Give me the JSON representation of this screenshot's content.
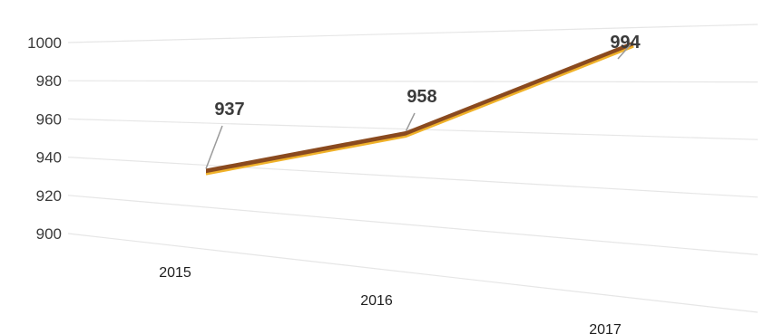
{
  "chart_data": {
    "type": "line",
    "title": "",
    "xlabel": "",
    "ylabel": "",
    "categories": [
      "2015",
      "2016",
      "2017"
    ],
    "series": [
      {
        "values": [
          937,
          958,
          994
        ]
      }
    ],
    "data_labels": [
      "937",
      "958",
      "994"
    ],
    "y_ticks": [
      "1000",
      "980",
      "960",
      "940",
      "920",
      "900"
    ],
    "ylim": [
      900,
      1000
    ],
    "grid": true,
    "perspective_3d": true,
    "colors": {
      "line_top": "#8a4a1f",
      "line_bottom": "#f0b22a",
      "gridline": "#e6e6e6",
      "leader": "#9a9a9a"
    }
  }
}
